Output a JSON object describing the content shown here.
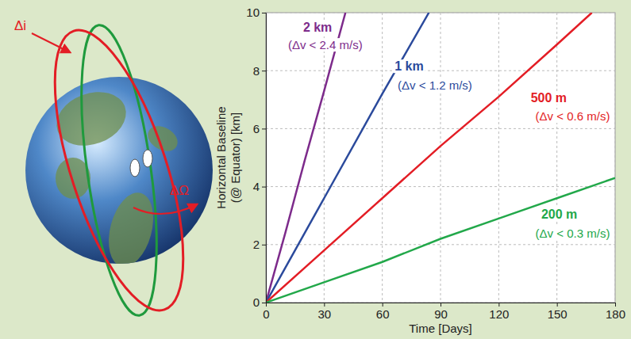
{
  "chart_data": {
    "type": "line",
    "xlabel": "Time [Days]",
    "ylabel": [
      "Horizontal Baseline",
      "(@ Equator) [km]"
    ],
    "xlim": [
      0,
      180
    ],
    "ylim": [
      0,
      10
    ],
    "xticks": [
      0,
      30,
      60,
      90,
      120,
      150,
      180
    ],
    "yticks": [
      0,
      2,
      4,
      6,
      8,
      10
    ],
    "grid": true,
    "series": [
      {
        "name": "2 km",
        "label": "(Δv < 2.4 m/s)",
        "color": "#7d2b8b",
        "x": [
          0,
          10,
          20,
          30,
          41
        ],
        "values": [
          0,
          2.4,
          4.9,
          7.3,
          10
        ]
      },
      {
        "name": "1 km",
        "label": "(Δv < 1.2 m/s)",
        "color": "#2b4a9c",
        "x": [
          0,
          15,
          30,
          60,
          84
        ],
        "values": [
          0,
          1.8,
          3.6,
          7.2,
          10
        ]
      },
      {
        "name": "500 m",
        "label": "(Δv < 0.6 m/s)",
        "color": "#e31d25",
        "x": [
          0,
          30,
          60,
          90,
          120,
          150,
          168
        ],
        "values": [
          0,
          1.8,
          3.6,
          5.4,
          7.1,
          8.9,
          10
        ]
      },
      {
        "name": "200 m",
        "label": "(Δv < 0.3 m/s)",
        "color": "#22a84a",
        "x": [
          0,
          30,
          60,
          90,
          120,
          150,
          180
        ],
        "values": [
          0,
          0.7,
          1.4,
          2.2,
          2.9,
          3.6,
          4.3
        ]
      }
    ]
  },
  "diagram": {
    "labels": {
      "delta_i": "Δi",
      "delta_omega": "ΔΩ"
    }
  }
}
